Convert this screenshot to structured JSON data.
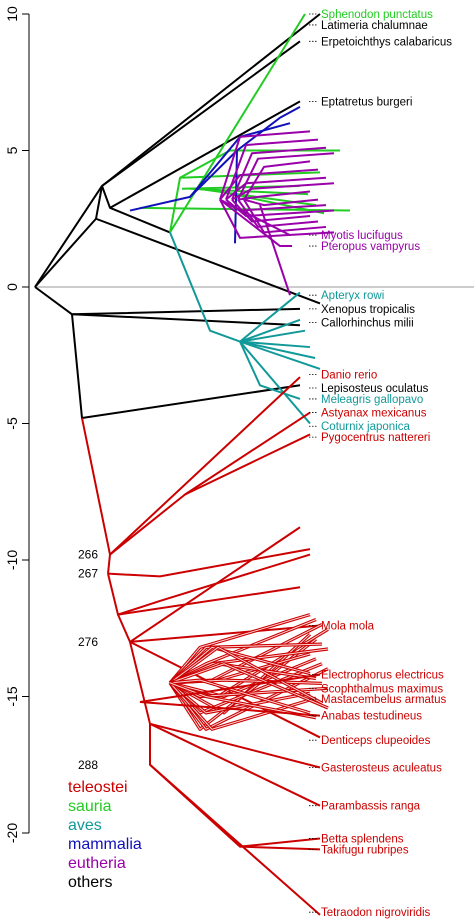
{
  "chart_data": {
    "type": "phylogenetic-tree",
    "ylim": [
      -20.5,
      10.5
    ],
    "ytick_labels": [
      "-20",
      "-15",
      "-10",
      "-5",
      "0",
      "5",
      "10"
    ],
    "ytick_values": [
      -20,
      -15,
      -10,
      -5,
      0,
      5,
      10
    ],
    "reference_line_y": 0,
    "colors": {
      "teleostei": "#cc0000",
      "sauria": "#22cc22",
      "aves": "#119999",
      "mammalia": "#1111bb",
      "eutheria": "#9900aa",
      "others": "#000000",
      "reference_line": "#bbbbbb"
    },
    "legend": [
      {
        "label": "teleostei",
        "group": "teleostei"
      },
      {
        "label": "sauria",
        "group": "sauria"
      },
      {
        "label": "aves",
        "group": "aves"
      },
      {
        "label": "mammalia",
        "group": "mammalia"
      },
      {
        "label": "eutheria",
        "group": "eutheria"
      },
      {
        "label": "others",
        "group": "others"
      }
    ],
    "node_labels": [
      {
        "label": "266",
        "y": -9.8
      },
      {
        "label": "267",
        "y": -10.5
      },
      {
        "label": "276",
        "y": -13.0
      },
      {
        "label": "288",
        "y": -17.5
      }
    ],
    "taxa": [
      {
        "name": "Sphenodon punctatus",
        "group": "sauria",
        "y": 10.0
      },
      {
        "name": "Latimeria chalumnae",
        "group": "others",
        "y": 9.6
      },
      {
        "name": "Erpetoichthys calabaricus",
        "group": "others",
        "y": 9.0
      },
      {
        "name": "Eptatretus burgeri",
        "group": "others",
        "y": 6.8
      },
      {
        "name": "Myotis lucifugus",
        "group": "eutheria",
        "y": 1.9
      },
      {
        "name": "Pteropus vampyrus",
        "group": "eutheria",
        "y": 1.5
      },
      {
        "name": "Apteryx rowi",
        "group": "aves",
        "y": -0.3
      },
      {
        "name": "Xenopus tropicalis",
        "group": "others",
        "y": -0.8
      },
      {
        "name": "Callorhinchus milii",
        "group": "others",
        "y": -1.3
      },
      {
        "name": "Danio rerio",
        "group": "teleostei",
        "y": -3.2
      },
      {
        "name": "Lepisosteus oculatus",
        "group": "others",
        "y": -3.7
      },
      {
        "name": "Meleagris gallopavo",
        "group": "aves",
        "y": -4.1
      },
      {
        "name": "Astyanax mexicanus",
        "group": "teleostei",
        "y": -4.6
      },
      {
        "name": "Coturnix japonica",
        "group": "aves",
        "y": -5.1
      },
      {
        "name": "Pygocentrus nattereri",
        "group": "teleostei",
        "y": -5.5
      },
      {
        "name": "Mola mola",
        "group": "teleostei",
        "y": -12.4
      },
      {
        "name": "Electrophorus electricus",
        "group": "teleostei",
        "y": -14.2
      },
      {
        "name": "Scophthalmus maximus",
        "group": "teleostei",
        "y": -14.7
      },
      {
        "name": "Mastacembelus armatus",
        "group": "teleostei",
        "y": -15.1
      },
      {
        "name": "Anabas testudineus",
        "group": "teleostei",
        "y": -15.7
      },
      {
        "name": "Denticeps clupeoides",
        "group": "teleostei",
        "y": -16.6
      },
      {
        "name": "Gasterosteus aculeatus",
        "group": "teleostei",
        "y": -17.6
      },
      {
        "name": "Parambassis ranga",
        "group": "teleostei",
        "y": -19.0
      },
      {
        "name": "Betta splendens",
        "group": "teleostei",
        "y": -20.2
      },
      {
        "name": "Takifugu rubripes",
        "group": "teleostei",
        "y": -20.6
      },
      {
        "name": "Tetraodon nigroviridis",
        "group": "teleostei",
        "y": -22.9
      }
    ]
  }
}
